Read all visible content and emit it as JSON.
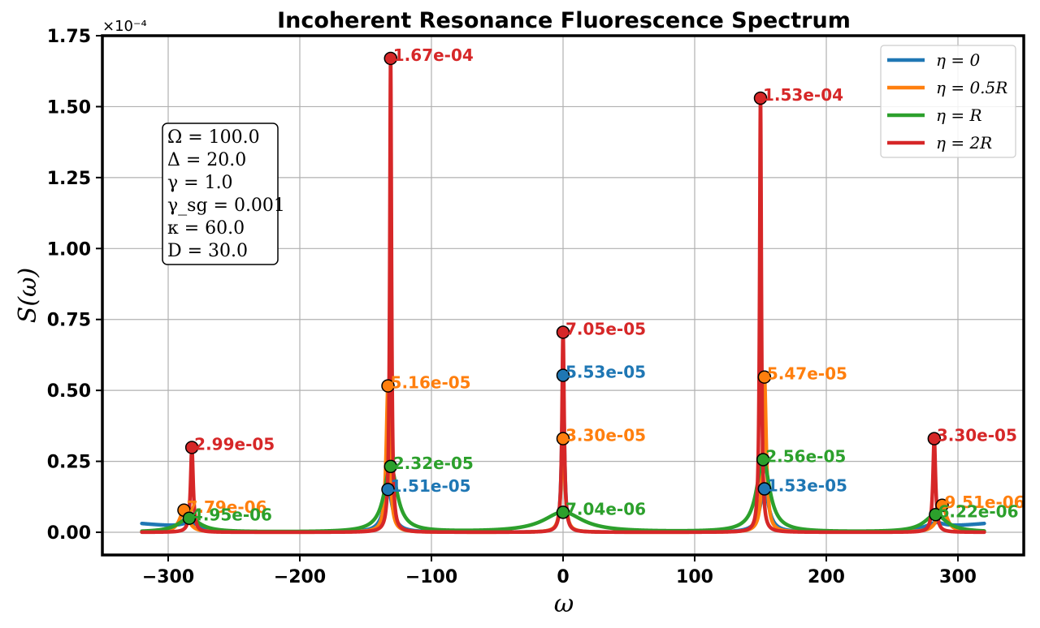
{
  "chart_data": {
    "type": "line",
    "title": "Incoherent Resonance Fluorescence Spectrum",
    "xlabel": "ω",
    "ylabel": "S(ω)",
    "xlim": [
      -350,
      350
    ],
    "ylim": [
      -0.08,
      1.75
    ],
    "y_scale_label": "×10⁻⁴",
    "x_ticks": [
      -300,
      -200,
      -100,
      0,
      100,
      200,
      300
    ],
    "x_tick_labels": [
      "−300",
      "−200",
      "−100",
      "0",
      "100",
      "200",
      "300"
    ],
    "y_ticks": [
      0.0,
      0.25,
      0.5,
      0.75,
      1.0,
      1.25,
      1.5,
      1.75
    ],
    "y_tick_labels": [
      "0.00",
      "0.25",
      "0.50",
      "0.75",
      "1.00",
      "1.25",
      "1.50",
      "1.75"
    ],
    "grid": true,
    "legend_position": "top-right",
    "x_range": [
      -320,
      320
    ],
    "series": [
      {
        "name": "η = 0",
        "color": "#1f77b4",
        "baseline": 0.03,
        "peaks": [
          {
            "x": -283,
            "y": 0.02,
            "w": 8
          },
          {
            "x": -133,
            "y": 0.151,
            "w": 4
          },
          {
            "x": 0,
            "y": 0.553,
            "w": 1.2
          },
          {
            "x": 153,
            "y": 0.153,
            "w": 4
          },
          {
            "x": 283,
            "y": 0.02,
            "w": 8
          }
        ]
      },
      {
        "name": "η = 0.5R",
        "color": "#ff7f0e",
        "baseline": 0.0,
        "peaks": [
          {
            "x": -288,
            "y": 0.0779,
            "w": 4
          },
          {
            "x": -133,
            "y": 0.516,
            "w": 1.6
          },
          {
            "x": 0,
            "y": 0.33,
            "w": 1.6
          },
          {
            "x": 153,
            "y": 0.547,
            "w": 1.6
          },
          {
            "x": 288,
            "y": 0.0951,
            "w": 4
          }
        ]
      },
      {
        "name": "η = R",
        "color": "#2ca02c",
        "baseline": 0.0,
        "peaks": [
          {
            "x": -284,
            "y": 0.0495,
            "w": 10
          },
          {
            "x": -131,
            "y": 0.232,
            "w": 6
          },
          {
            "x": 0,
            "y": 0.0704,
            "w": 18
          },
          {
            "x": 152,
            "y": 0.256,
            "w": 6
          },
          {
            "x": 283,
            "y": 0.0622,
            "w": 10
          }
        ]
      },
      {
        "name": "η = 2R",
        "color": "#d62728",
        "baseline": 0.0,
        "peaks": [
          {
            "x": -282,
            "y": 0.299,
            "w": 1.2
          },
          {
            "x": -131,
            "y": 1.67,
            "w": 0.8
          },
          {
            "x": 0,
            "y": 0.705,
            "w": 1.0
          },
          {
            "x": 150,
            "y": 1.53,
            "w": 0.8
          },
          {
            "x": 282,
            "y": 0.33,
            "w": 1.2
          }
        ]
      }
    ],
    "markers": [
      {
        "series": 0,
        "x": -133,
        "y": 0.151,
        "label": "1.51e-05"
      },
      {
        "series": 0,
        "x": 0,
        "y": 0.553,
        "label": "5.53e-05"
      },
      {
        "series": 0,
        "x": 153,
        "y": 0.153,
        "label": "1.53e-05"
      },
      {
        "series": 1,
        "x": -288,
        "y": 0.0779,
        "label": "7.79e-06"
      },
      {
        "series": 1,
        "x": -133,
        "y": 0.516,
        "label": "5.16e-05"
      },
      {
        "series": 1,
        "x": 0,
        "y": 0.33,
        "label": "3.30e-05"
      },
      {
        "series": 1,
        "x": 153,
        "y": 0.547,
        "label": "5.47e-05"
      },
      {
        "series": 1,
        "x": 288,
        "y": 0.0951,
        "label": "9.51e-06"
      },
      {
        "series": 2,
        "x": -284,
        "y": 0.0495,
        "label": "4.95e-06"
      },
      {
        "series": 2,
        "x": -131,
        "y": 0.232,
        "label": "2.32e-05"
      },
      {
        "series": 2,
        "x": 0,
        "y": 0.0704,
        "label": "7.04e-06"
      },
      {
        "series": 2,
        "x": 152,
        "y": 0.256,
        "label": "2.56e-05"
      },
      {
        "series": 2,
        "x": 283,
        "y": 0.0622,
        "label": "6.22e-06"
      },
      {
        "series": 3,
        "x": -282,
        "y": 0.299,
        "label": "2.99e-05"
      },
      {
        "series": 3,
        "x": -131,
        "y": 1.67,
        "label": "1.67e-04"
      },
      {
        "series": 3,
        "x": 0,
        "y": 0.705,
        "label": "7.05e-05"
      },
      {
        "series": 3,
        "x": 150,
        "y": 1.53,
        "label": "1.53e-04"
      },
      {
        "series": 3,
        "x": 282,
        "y": 0.33,
        "label": "3.30e-05"
      }
    ],
    "params": [
      "Ω = 100.0",
      "Δ = 20.0",
      "γ = 1.0",
      "γ_sg = 0.001",
      "κ = 60.0",
      "D = 30.0"
    ]
  }
}
